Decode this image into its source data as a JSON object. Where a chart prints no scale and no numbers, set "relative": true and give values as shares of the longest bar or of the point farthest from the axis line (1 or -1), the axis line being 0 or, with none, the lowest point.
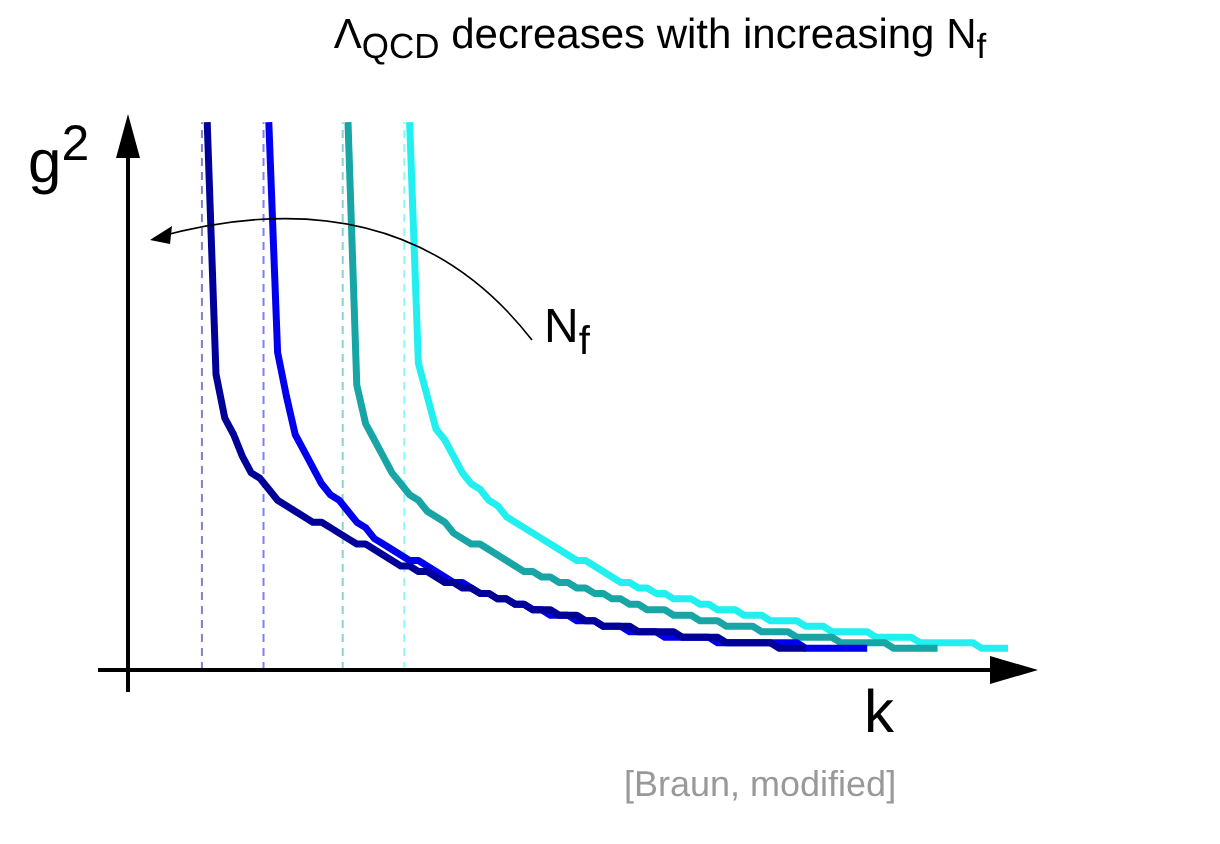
{
  "chart_data": {
    "type": "line",
    "title": "Λ$_{QCD}$ decreases with increasing N$_{f}$",
    "xlabel": "k",
    "ylabel": "g$^{2}$",
    "relative": true,
    "annotations": [
      "N$_{f}$",
      "[Braun, modified]"
    ],
    "categories": [
      null,
      null,
      null,
      null,
      null,
      null,
      null,
      null,
      null,
      null,
      null,
      null,
      null,
      null,
      null,
      null,
      null,
      null,
      null,
      null,
      null,
      null,
      null,
      null,
      null,
      null,
      null,
      null,
      null,
      null,
      null,
      null,
      null,
      null,
      null,
      null,
      null,
      null,
      null,
      null,
      null,
      null,
      null,
      null,
      null,
      null,
      null,
      null,
      null,
      null,
      null,
      null,
      null,
      null,
      null,
      null,
      null,
      null,
      null,
      null,
      null,
      null,
      null,
      null,
      null,
      null,
      null,
      null,
      null,
      null,
      null,
      null,
      null,
      null,
      null,
      null,
      null,
      null,
      null,
      null,
      null,
      null,
      null,
      null,
      null,
      null,
      null,
      null,
      null,
      null,
      null,
      null,
      null,
      null,
      null,
      null,
      null,
      null,
      null,
      null,
      null
    ],
    "series": [
      {
        "color": "#000099",
        "values": [
          null,
          null,
          null,
          null,
          null,
          null,
          null,
          null,
          null,
          1.0,
          0.54,
          0.46,
          0.43,
          0.39,
          0.36,
          0.35,
          0.33,
          0.31,
          0.3,
          0.29,
          0.28,
          0.27,
          0.27,
          0.26,
          0.25,
          0.24,
          0.23,
          0.23,
          0.22,
          0.21,
          0.2,
          0.19,
          0.19,
          0.18,
          0.18,
          0.17,
          0.16,
          0.16,
          0.15,
          0.15,
          0.14,
          0.14,
          0.13,
          0.13,
          0.12,
          0.12,
          0.11,
          0.11,
          0.11,
          0.1,
          0.1,
          0.1,
          0.09,
          0.09,
          0.08,
          0.08,
          0.08,
          0.08,
          0.07,
          0.07,
          0.07,
          0.07,
          0.07,
          0.06,
          0.06,
          0.06,
          0.06,
          0.06,
          0.05,
          0.05,
          0.05,
          0.05,
          0.05,
          0.05,
          0.04,
          0.04,
          0.04,
          0.04,
          null,
          null,
          null,
          null,
          null,
          null,
          null,
          null,
          null,
          null,
          null,
          null,
          null,
          null,
          null,
          null,
          null,
          null,
          null,
          null,
          null,
          null,
          null
        ]
      },
      {
        "color": "#0000ee",
        "values": [
          null,
          null,
          null,
          null,
          null,
          null,
          null,
          null,
          null,
          null,
          null,
          null,
          null,
          null,
          null,
          null,
          1.0,
          0.58,
          0.5,
          0.43,
          0.4,
          0.37,
          0.34,
          0.32,
          0.31,
          0.29,
          0.27,
          0.26,
          0.24,
          0.23,
          0.22,
          0.21,
          0.2,
          0.2,
          0.19,
          0.18,
          0.17,
          0.16,
          0.16,
          0.15,
          0.14,
          0.14,
          0.13,
          0.13,
          0.12,
          0.12,
          0.11,
          0.11,
          0.1,
          0.1,
          0.1,
          0.09,
          0.09,
          0.09,
          0.08,
          0.08,
          0.08,
          0.07,
          0.07,
          0.07,
          0.07,
          0.06,
          0.06,
          0.06,
          0.06,
          0.06,
          0.06,
          0.05,
          0.05,
          0.05,
          0.05,
          0.05,
          0.05,
          0.05,
          0.05,
          0.05,
          0.05,
          0.04,
          0.04,
          0.04,
          0.04,
          0.04,
          0.04,
          0.04,
          0.04,
          null,
          null,
          null,
          null,
          null,
          null,
          null,
          null,
          null,
          null,
          null,
          null,
          null,
          null,
          null,
          null
        ]
      },
      {
        "color": "#17a5a5",
        "values": [
          null,
          null,
          null,
          null,
          null,
          null,
          null,
          null,
          null,
          null,
          null,
          null,
          null,
          null,
          null,
          null,
          null,
          null,
          null,
          null,
          null,
          null,
          null,
          null,
          null,
          1.0,
          0.52,
          0.45,
          0.42,
          0.39,
          0.36,
          0.34,
          0.32,
          0.31,
          0.29,
          0.28,
          0.27,
          0.25,
          0.24,
          0.23,
          0.23,
          0.22,
          0.21,
          0.2,
          0.19,
          0.18,
          0.18,
          0.17,
          0.17,
          0.16,
          0.16,
          0.15,
          0.15,
          0.14,
          0.14,
          0.13,
          0.13,
          0.12,
          0.12,
          0.11,
          0.11,
          0.11,
          0.1,
          0.1,
          0.1,
          0.09,
          0.09,
          0.09,
          0.08,
          0.08,
          0.08,
          0.08,
          0.07,
          0.07,
          0.07,
          0.07,
          0.06,
          0.06,
          0.06,
          0.06,
          0.06,
          0.05,
          0.05,
          0.05,
          0.05,
          0.05,
          0.05,
          0.04,
          0.04,
          0.04,
          0.04,
          0.04,
          0.04,
          null,
          null,
          null,
          null,
          null,
          null,
          null,
          null
        ]
      },
      {
        "color": "#22f0f0",
        "values": [
          null,
          null,
          null,
          null,
          null,
          null,
          null,
          null,
          null,
          null,
          null,
          null,
          null,
          null,
          null,
          null,
          null,
          null,
          null,
          null,
          null,
          null,
          null,
          null,
          null,
          null,
          null,
          null,
          null,
          null,
          null,
          null,
          1.0,
          0.56,
          0.5,
          0.44,
          0.42,
          0.39,
          0.36,
          0.34,
          0.33,
          0.31,
          0.3,
          0.28,
          0.27,
          0.26,
          0.25,
          0.24,
          0.23,
          0.22,
          0.21,
          0.2,
          0.2,
          0.19,
          0.18,
          0.17,
          0.16,
          0.16,
          0.15,
          0.15,
          0.14,
          0.14,
          0.13,
          0.13,
          0.13,
          0.12,
          0.12,
          0.11,
          0.11,
          0.11,
          0.1,
          0.1,
          0.1,
          0.09,
          0.09,
          0.09,
          0.09,
          0.08,
          0.08,
          0.08,
          0.07,
          0.07,
          0.07,
          0.07,
          0.07,
          0.06,
          0.06,
          0.06,
          0.06,
          0.06,
          0.05,
          0.05,
          0.05,
          0.05,
          0.05,
          0.05,
          0.05,
          0.04,
          0.04,
          0.04,
          0.04
        ]
      }
    ]
  }
}
